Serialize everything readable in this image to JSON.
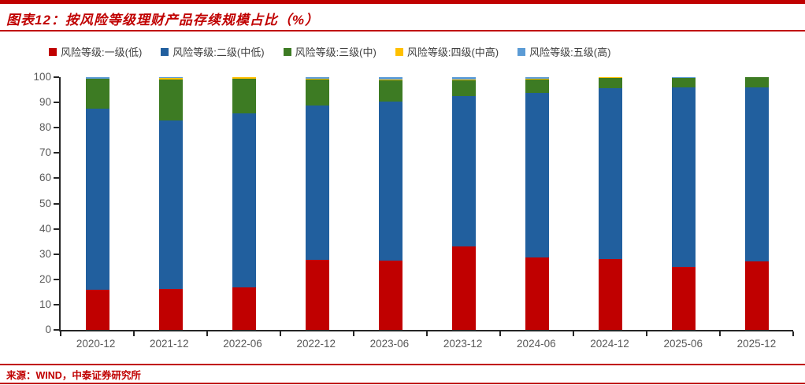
{
  "header": {
    "title": "图表12：按风险等级理财产品存续规模占比（%）"
  },
  "footer": {
    "source": "来源：WIND，中泰证券研究所"
  },
  "colors": {
    "accent_red": "#C00000",
    "axis": "#262626",
    "tick_label": "#595959",
    "legend_text": "#404040"
  },
  "chart_data": {
    "type": "bar",
    "stacked": true,
    "grid": false,
    "legend_position": "top",
    "title": "按风险等级理财产品存续规模占比（%）",
    "xlabel": "",
    "ylabel": "",
    "ylim": [
      0,
      100
    ],
    "ytick_step": 10,
    "categories": [
      "2020-12",
      "2021-12",
      "2022-06",
      "2022-12",
      "2023-06",
      "2023-12",
      "2024-06",
      "2024-12",
      "2025-06",
      "2025-12"
    ],
    "series": [
      {
        "name": "风险等级:一级(低)",
        "color": "#C00000",
        "values": [
          15.9,
          16.2,
          16.7,
          27.8,
          27.4,
          33.0,
          28.7,
          28.0,
          25.0,
          27.2
        ]
      },
      {
        "name": "风险等级:二级(中低)",
        "color": "#215F9E",
        "values": [
          71.5,
          66.6,
          69.1,
          60.9,
          62.8,
          59.6,
          65.2,
          67.7,
          70.9,
          68.7
        ]
      },
      {
        "name": "风险等级:三级(中)",
        "color": "#3D7B23",
        "values": [
          12.0,
          16.4,
          13.7,
          10.3,
          8.6,
          6.2,
          5.3,
          4.1,
          3.8,
          4.0
        ]
      },
      {
        "name": "风险等级:四级(中高)",
        "color": "#FFC000",
        "values": [
          0.1,
          0.6,
          0.4,
          0.5,
          0.4,
          0.3,
          0.1,
          0.1,
          0.1,
          0.1
        ]
      },
      {
        "name": "风险等级:五级(高)",
        "color": "#5B9BD5",
        "values": [
          0.5,
          0.2,
          0.1,
          0.5,
          0.8,
          0.9,
          0.7,
          0.1,
          0.2,
          0.0
        ]
      }
    ]
  }
}
